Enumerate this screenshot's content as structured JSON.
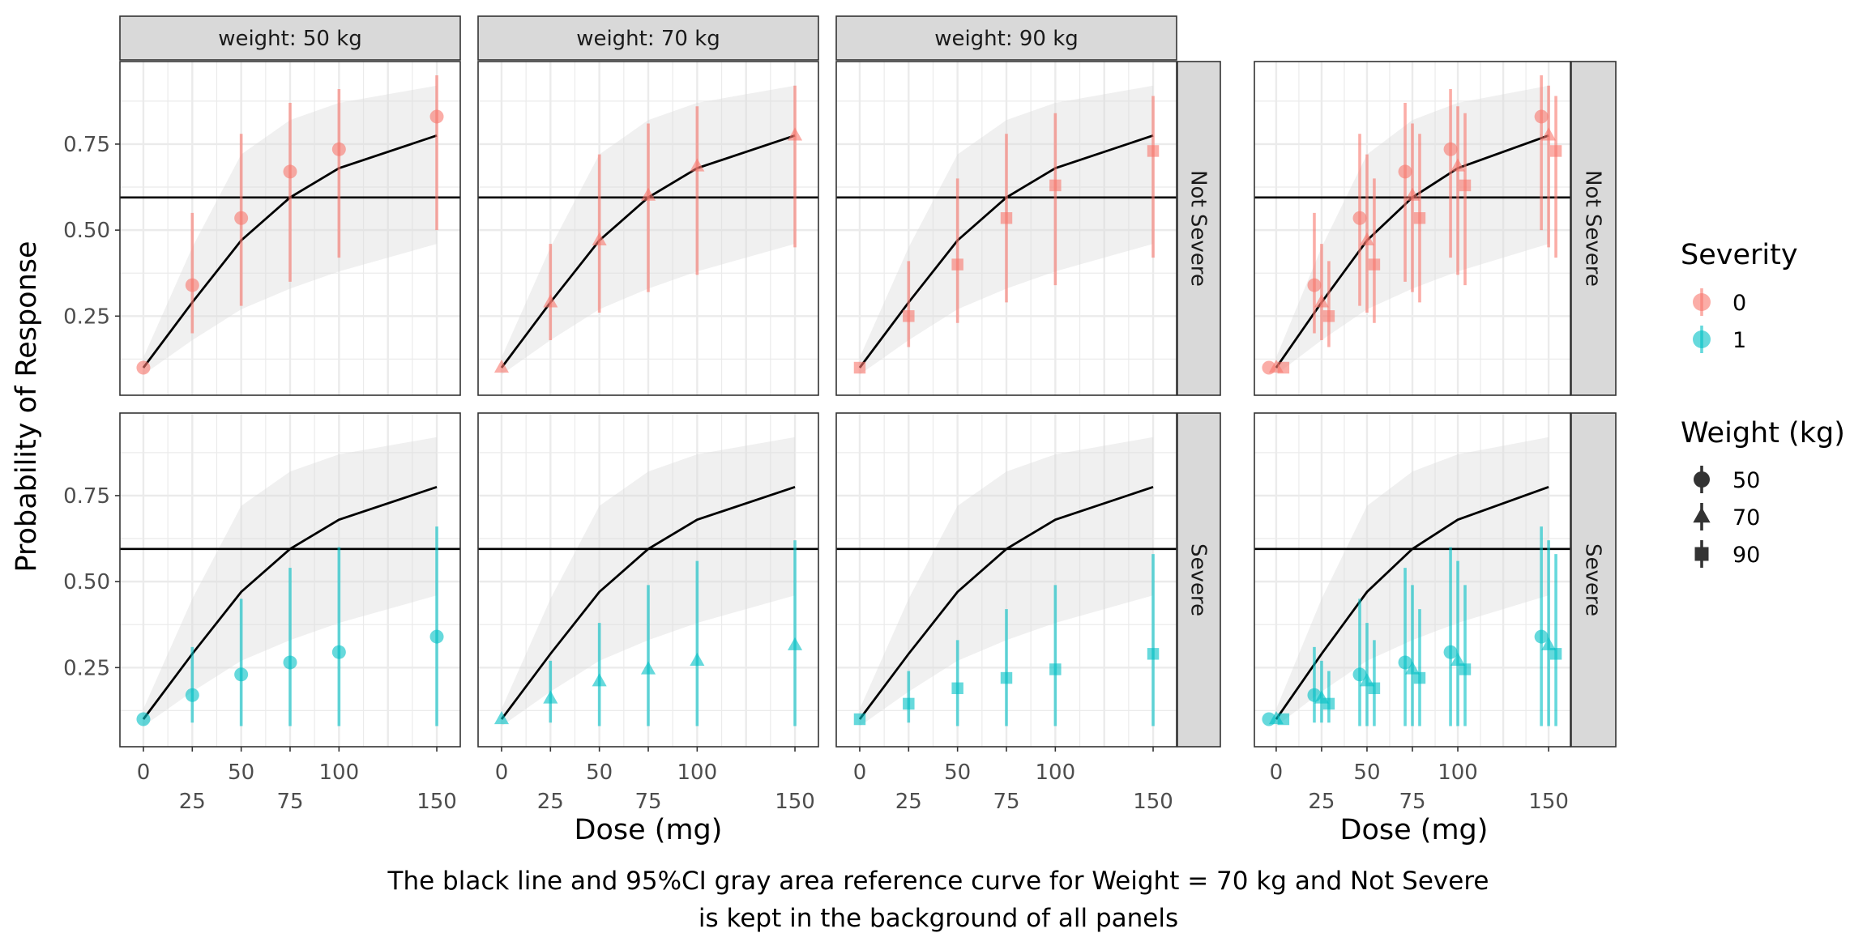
{
  "chart_data": {
    "type": "line",
    "ylabel": "Probability of Response",
    "xlabel": "Dose (mg)",
    "caption": [
      "The black line and 95%CI gray area reference curve for Weight = 70 kg and Not Severe",
      "is kept in the background of all panels"
    ],
    "x_ticks_top": [
      "0",
      "50",
      "100",
      "150"
    ],
    "x_ticks_bottom": [
      "25",
      "75"
    ],
    "y_ticks": [
      "0.25",
      "0.50",
      "0.75"
    ],
    "xlim": [
      -12,
      162
    ],
    "ylim": [
      0.02,
      0.99
    ],
    "grid": true,
    "column_strips": [
      "weight: 50 kg",
      "weight: 70 kg",
      "weight: 90 kg"
    ],
    "row_strips": [
      "Not Severe",
      "Severe"
    ],
    "reference_line": {
      "y": 0.595
    },
    "reference_curve": {
      "x": [
        0,
        25,
        50,
        75,
        100,
        150
      ],
      "y": [
        0.1,
        0.29,
        0.47,
        0.595,
        0.68,
        0.775
      ],
      "lower": [
        0.08,
        0.18,
        0.27,
        0.33,
        0.38,
        0.46
      ],
      "upper": [
        0.13,
        0.45,
        0.72,
        0.82,
        0.87,
        0.92
      ]
    },
    "series": [
      {
        "severity": "0",
        "weight": "50",
        "x": [
          0,
          25,
          50,
          75,
          100,
          150
        ],
        "y": [
          0.1,
          0.34,
          0.535,
          0.67,
          0.735,
          0.83
        ],
        "lower": [
          0.1,
          0.2,
          0.28,
          0.35,
          0.42,
          0.5
        ],
        "upper": [
          0.1,
          0.55,
          0.78,
          0.87,
          0.91,
          0.95
        ]
      },
      {
        "severity": "0",
        "weight": "70",
        "x": [
          0,
          25,
          50,
          75,
          100,
          150
        ],
        "y": [
          0.1,
          0.29,
          0.47,
          0.6,
          0.685,
          0.775
        ],
        "lower": [
          0.1,
          0.18,
          0.26,
          0.32,
          0.37,
          0.45
        ],
        "upper": [
          0.1,
          0.46,
          0.72,
          0.81,
          0.86,
          0.92
        ]
      },
      {
        "severity": "0",
        "weight": "90",
        "x": [
          0,
          25,
          50,
          75,
          100,
          150
        ],
        "y": [
          0.1,
          0.25,
          0.4,
          0.535,
          0.63,
          0.73
        ],
        "lower": [
          0.1,
          0.16,
          0.23,
          0.29,
          0.34,
          0.42
        ],
        "upper": [
          0.1,
          0.41,
          0.65,
          0.78,
          0.84,
          0.89
        ]
      },
      {
        "severity": "1",
        "weight": "50",
        "x": [
          0,
          25,
          50,
          75,
          100,
          150
        ],
        "y": [
          0.1,
          0.17,
          0.23,
          0.265,
          0.295,
          0.34
        ],
        "lower": [
          0.1,
          0.09,
          0.08,
          0.08,
          0.08,
          0.08
        ],
        "upper": [
          0.1,
          0.31,
          0.45,
          0.54,
          0.6,
          0.66
        ]
      },
      {
        "severity": "1",
        "weight": "70",
        "x": [
          0,
          25,
          50,
          75,
          100,
          150
        ],
        "y": [
          0.1,
          0.16,
          0.21,
          0.245,
          0.27,
          0.315
        ],
        "lower": [
          0.1,
          0.09,
          0.08,
          0.08,
          0.08,
          0.08
        ],
        "upper": [
          0.1,
          0.27,
          0.38,
          0.49,
          0.56,
          0.62
        ]
      },
      {
        "severity": "1",
        "weight": "90",
        "x": [
          0,
          25,
          50,
          75,
          100,
          150
        ],
        "y": [
          0.1,
          0.145,
          0.19,
          0.22,
          0.245,
          0.29
        ],
        "lower": [
          0.1,
          0.09,
          0.08,
          0.08,
          0.08,
          0.08
        ],
        "upper": [
          0.1,
          0.24,
          0.33,
          0.42,
          0.49,
          0.58
        ]
      }
    ],
    "colors": {
      "severity_0": "#F8766D",
      "severity_1": "#00BFC4",
      "reference_line": "#000000",
      "ribbon": "#d9d9d9"
    },
    "shapes": {
      "50": "circle",
      "70": "triangle",
      "90": "square"
    },
    "overlay_dodge": {
      "50": -4,
      "70": 0,
      "90": 4
    },
    "legend": {
      "placement": "right",
      "severity": {
        "title": "Severity",
        "items": [
          "0",
          "1"
        ]
      },
      "weight": {
        "title": "Weight (kg)",
        "items": [
          "50",
          "70",
          "90"
        ]
      }
    }
  }
}
